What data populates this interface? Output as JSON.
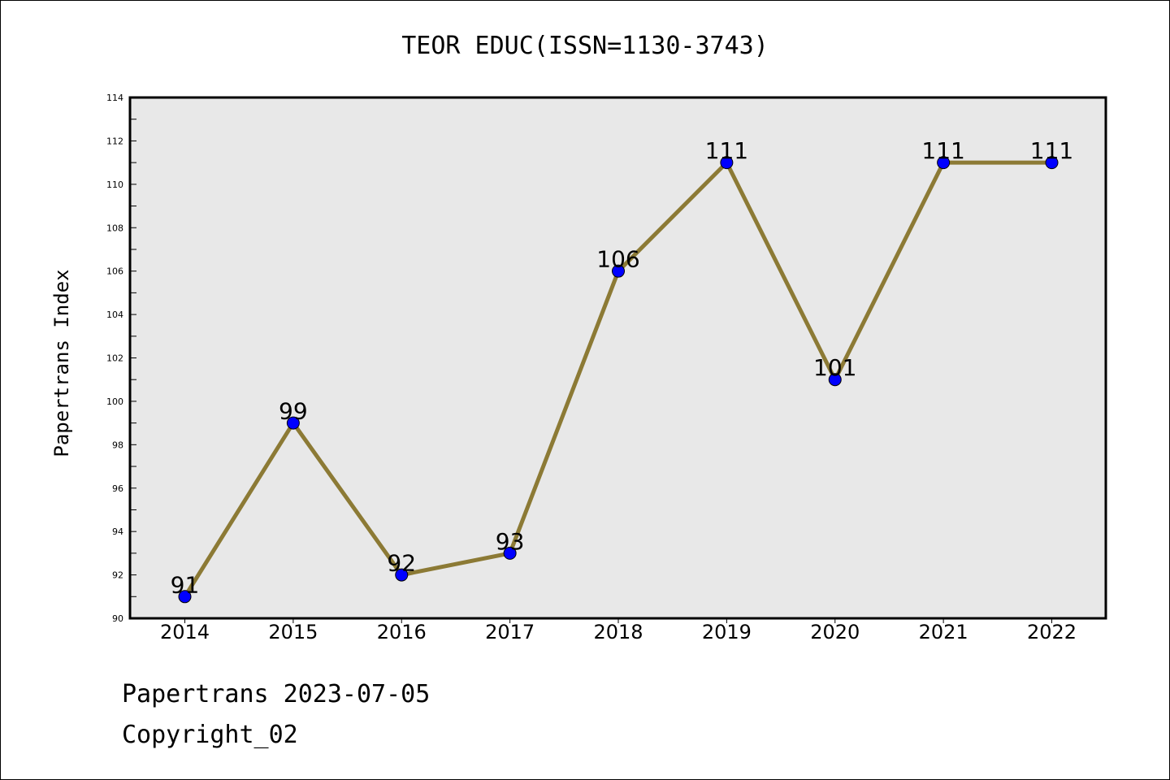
{
  "chart_data": {
    "type": "line",
    "title": "TEOR EDUC(ISSN=1130-3743)",
    "ylabel": "Papertrans Index",
    "xlabel": "",
    "categories": [
      "2014",
      "2015",
      "2016",
      "2017",
      "2018",
      "2019",
      "2020",
      "2021",
      "2022"
    ],
    "series": [
      {
        "values": [
          91,
          99,
          92,
          93,
          106,
          111,
          101,
          111,
          111
        ]
      }
    ],
    "data_labels": [
      "91",
      "99",
      "92",
      "93",
      "106",
      "111",
      "101",
      "111",
      "111"
    ],
    "ylim": [
      90,
      114
    ],
    "yticks": [
      "90",
      "92",
      "94",
      "96",
      "98",
      "100",
      "102",
      "104",
      "106",
      "108",
      "110",
      "112",
      "114"
    ],
    "grid": false,
    "legend": "none",
    "colors": {
      "line": "#8c7a35",
      "marker": "#0000ff",
      "plot_background": "#e8e8e8"
    }
  },
  "footer": {
    "line1": "Papertrans 2023-07-05",
    "line2": "Copyright_02"
  }
}
